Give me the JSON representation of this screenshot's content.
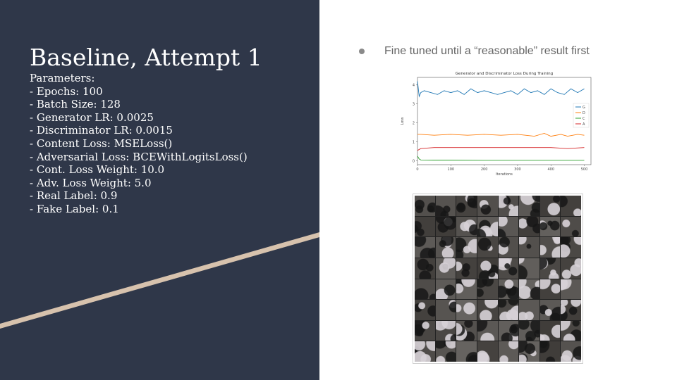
{
  "slide": {
    "title": "Baseline, Attempt 1",
    "params_heading": "Parameters:",
    "params": [
      "- Epochs: 100",
      "- Batch Size: 128",
      "- Generator LR: 0.0025",
      "- Discriminator LR: 0.0015",
      "- Content Loss: MSELoss()",
      "- Adversarial Loss: BCEWithLogitsLoss()",
      "- Cont. Loss Weight: 10.0",
      "- Adv. Loss Weight: 5.0",
      "- Real Label: 0.9",
      "- Fake Label: 0.1"
    ],
    "bullet": "Fine tuned until a “reasonable” result first",
    "colors": {
      "panel": "#2f3749",
      "stripe": "#d7c2ad"
    },
    "sample_grid": {
      "rows": 8,
      "cols": 8
    }
  },
  "chart_data": {
    "type": "line",
    "title": "Generator and Discriminator Loss During Training",
    "xlabel": "Iterations",
    "ylabel": "Loss",
    "xlim": [
      0,
      520
    ],
    "ylim": [
      -0.2,
      4.4
    ],
    "xticks": [
      0,
      100,
      200,
      300,
      400,
      500
    ],
    "yticks": [
      0,
      1,
      2,
      3,
      4
    ],
    "legend_position": "right",
    "series": [
      {
        "name": "G",
        "color": "#1f77b4",
        "x": [
          0,
          5,
          10,
          20,
          40,
          60,
          80,
          100,
          120,
          140,
          160,
          180,
          200,
          220,
          240,
          260,
          280,
          300,
          320,
          340,
          360,
          380,
          400,
          420,
          440,
          460,
          480,
          500
        ],
        "values": [
          4.2,
          3.4,
          3.6,
          3.7,
          3.6,
          3.5,
          3.7,
          3.6,
          3.7,
          3.5,
          3.8,
          3.6,
          3.7,
          3.6,
          3.5,
          3.6,
          3.7,
          3.5,
          3.8,
          3.6,
          3.7,
          3.5,
          3.8,
          3.6,
          3.5,
          3.8,
          3.6,
          3.8
        ]
      },
      {
        "name": "D",
        "color": "#ff7f0e",
        "x": [
          0,
          10,
          50,
          100,
          150,
          200,
          250,
          300,
          350,
          380,
          400,
          430,
          450,
          480,
          500
        ],
        "values": [
          1.4,
          1.4,
          1.35,
          1.4,
          1.35,
          1.4,
          1.35,
          1.4,
          1.3,
          1.45,
          1.3,
          1.4,
          1.3,
          1.4,
          1.35
        ]
      },
      {
        "name": "C",
        "color": "#2ca02c",
        "x": [
          0,
          5,
          10,
          50,
          100,
          200,
          300,
          400,
          500
        ],
        "values": [
          0.25,
          0.1,
          0.05,
          0.04,
          0.04,
          0.03,
          0.03,
          0.03,
          0.03
        ]
      },
      {
        "name": "A",
        "color": "#d62728",
        "x": [
          0,
          10,
          50,
          100,
          200,
          300,
          400,
          450,
          500
        ],
        "values": [
          0.55,
          0.65,
          0.7,
          0.7,
          0.7,
          0.7,
          0.7,
          0.65,
          0.7
        ]
      }
    ]
  }
}
